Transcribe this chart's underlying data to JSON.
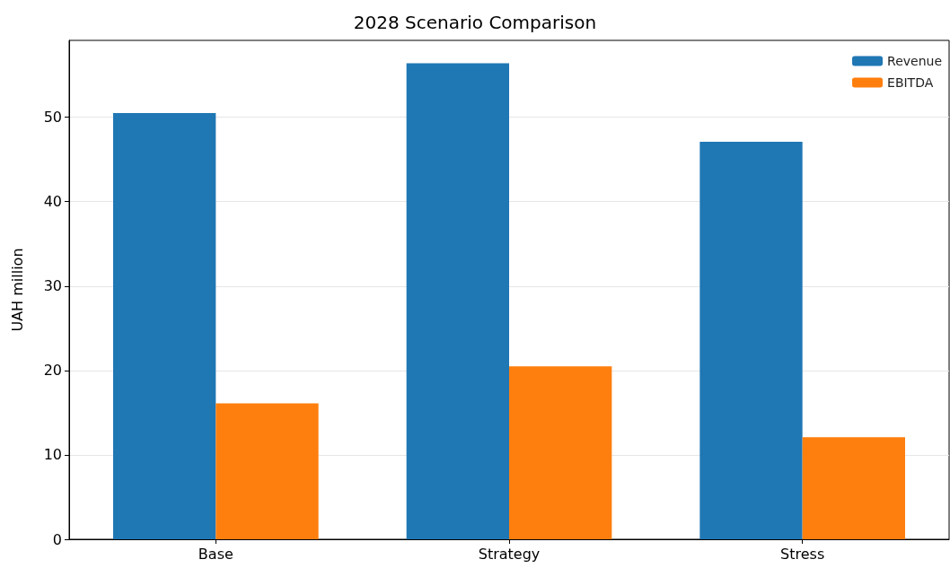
{
  "chart_data": {
    "type": "bar",
    "title": "2028 Scenario Comparison",
    "ylabel": "UAH million",
    "categories": [
      "Base",
      "Strategy",
      "Stress"
    ],
    "series": [
      {
        "name": "Revenue",
        "color": "#1f77b4",
        "values": [
          50.5,
          56.4,
          47.1
        ]
      },
      {
        "name": "EBITDA",
        "color": "#ff7f0e",
        "values": [
          16.1,
          20.5,
          12.1
        ]
      }
    ],
    "ylim": [
      0,
      59.1
    ],
    "yticks": [
      0,
      10,
      20,
      30,
      40,
      50
    ],
    "grid": "y",
    "legend": "top right"
  }
}
